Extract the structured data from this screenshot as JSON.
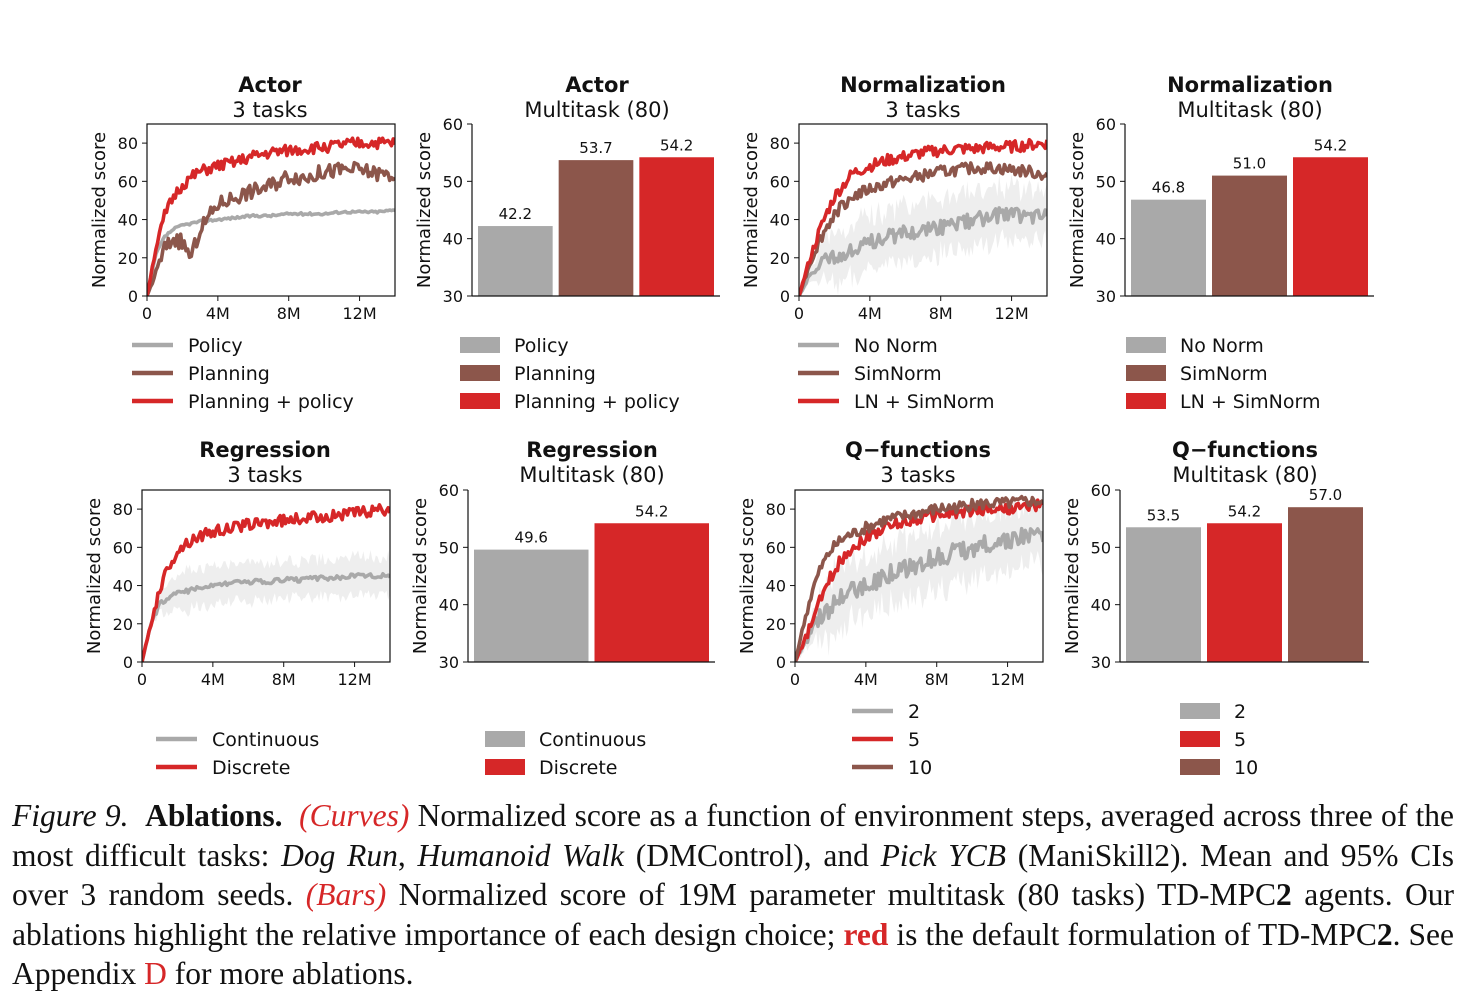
{
  "colors": {
    "gray": "#a9a9a9",
    "brown": "#8c564b",
    "red": "#d62728",
    "band": "#ececec",
    "caption_accent": "#d62728"
  },
  "chart_data": [
    {
      "type": "line",
      "id": "actor-curve",
      "title": "Actor",
      "subtitle": "3 tasks",
      "ylabel": "Normalized score",
      "xlabel": "",
      "xlim": [
        0,
        14
      ],
      "ylim": [
        0,
        90
      ],
      "xticks": [
        "0",
        "4M",
        "8M",
        "12M"
      ],
      "yticks": [
        "0",
        "20",
        "40",
        "60",
        "80"
      ],
      "x": [
        0,
        0.5,
        1,
        1.5,
        2,
        2.5,
        3,
        4,
        5,
        6,
        7,
        8,
        9,
        10,
        11,
        12,
        13,
        14
      ],
      "series": [
        {
          "name": "Policy",
          "color": "gray",
          "band": 0,
          "noise": 0.6,
          "values": [
            0,
            22,
            31,
            35,
            37,
            38,
            39,
            40,
            41,
            42,
            42,
            43,
            43,
            43,
            44,
            44,
            44,
            45
          ]
        },
        {
          "name": "Planning",
          "color": "brown",
          "band": 0,
          "noise": 4,
          "values": [
            0,
            12,
            25,
            30,
            28,
            20,
            35,
            48,
            52,
            55,
            58,
            63,
            62,
            65,
            66,
            66,
            64,
            63
          ]
        },
        {
          "name": "Planning + policy",
          "color": "red",
          "band": 0,
          "noise": 3,
          "values": [
            0,
            25,
            42,
            52,
            58,
            62,
            65,
            68,
            70,
            73,
            75,
            76,
            77,
            78,
            79,
            80,
            80,
            80
          ]
        }
      ],
      "legend": "below"
    },
    {
      "type": "bar",
      "id": "actor-bar",
      "title": "Actor",
      "subtitle": "Multitask (80)",
      "ylabel": "Normalized score",
      "ylim": [
        30,
        60
      ],
      "yticks": [
        "30",
        "40",
        "50",
        "60"
      ],
      "categories": [
        "Policy",
        "Planning",
        "Planning + policy"
      ],
      "values": [
        42.2,
        53.7,
        54.2
      ],
      "value_labels": [
        "42.2",
        "53.7",
        "54.2"
      ],
      "colors": [
        "gray",
        "brown",
        "red"
      ]
    },
    {
      "type": "line",
      "id": "norm-curve",
      "title": "Normalization",
      "subtitle": "3 tasks",
      "ylabel": "Normalized score",
      "xlabel": "",
      "xlim": [
        0,
        14
      ],
      "ylim": [
        0,
        90
      ],
      "xticks": [
        "0",
        "4M",
        "8M",
        "12M"
      ],
      "yticks": [
        "0",
        "20",
        "40",
        "60",
        "80"
      ],
      "x": [
        0,
        0.5,
        1,
        1.5,
        2,
        2.5,
        3,
        4,
        5,
        6,
        7,
        8,
        9,
        10,
        11,
        12,
        13,
        14
      ],
      "series": [
        {
          "name": "No Norm",
          "color": "gray",
          "band": 14,
          "noise": 4,
          "values": [
            0,
            8,
            15,
            18,
            20,
            22,
            24,
            28,
            31,
            33,
            35,
            36,
            38,
            40,
            42,
            43,
            42,
            43
          ]
        },
        {
          "name": "SimNorm",
          "color": "brown",
          "band": 0,
          "noise": 3,
          "values": [
            0,
            14,
            26,
            35,
            43,
            48,
            52,
            56,
            59,
            61,
            63,
            65,
            66,
            67,
            67,
            66,
            65,
            63
          ]
        },
        {
          "name": "LN + SimNorm",
          "color": "red",
          "band": 0,
          "noise": 3,
          "values": [
            0,
            16,
            30,
            42,
            52,
            58,
            64,
            68,
            71,
            73,
            75,
            76,
            77,
            77,
            78,
            78,
            79,
            80
          ]
        }
      ],
      "legend": "below"
    },
    {
      "type": "bar",
      "id": "norm-bar",
      "title": "Normalization",
      "subtitle": "Multitask (80)",
      "ylabel": "Normalized score",
      "ylim": [
        30,
        60
      ],
      "yticks": [
        "30",
        "40",
        "50",
        "60"
      ],
      "categories": [
        "No Norm",
        "SimNorm",
        "LN + SimNorm"
      ],
      "values": [
        46.8,
        51.0,
        54.2
      ],
      "value_labels": [
        "46.8",
        "51.0",
        "54.2"
      ],
      "colors": [
        "gray",
        "brown",
        "red"
      ]
    },
    {
      "type": "line",
      "id": "reg-curve",
      "title": "Regression",
      "subtitle": "3 tasks",
      "ylabel": "Normalized score",
      "xlabel": "",
      "xlim": [
        0,
        14
      ],
      "ylim": [
        0,
        90
      ],
      "xticks": [
        "0",
        "4M",
        "8M",
        "12M"
      ],
      "yticks": [
        "0",
        "20",
        "40",
        "60",
        "80"
      ],
      "x": [
        0,
        0.5,
        1,
        1.5,
        2,
        2.5,
        3,
        4,
        5,
        6,
        7,
        8,
        9,
        10,
        11,
        12,
        13,
        14
      ],
      "series": [
        {
          "name": "Continuous",
          "color": "gray",
          "band": 10,
          "noise": 1.2,
          "values": [
            0,
            20,
            30,
            34,
            36,
            37,
            38,
            40,
            41,
            42,
            42,
            43,
            43,
            44,
            44,
            45,
            45,
            45
          ]
        },
        {
          "name": "Discrete",
          "color": "red",
          "band": 0,
          "noise": 3,
          "values": [
            0,
            20,
            38,
            50,
            58,
            62,
            65,
            68,
            70,
            72,
            73,
            74,
            75,
            76,
            77,
            78,
            79,
            80
          ]
        }
      ],
      "legend": "below"
    },
    {
      "type": "bar",
      "id": "reg-bar",
      "title": "Regression",
      "subtitle": "Multitask (80)",
      "ylabel": "Normalized score",
      "ylim": [
        30,
        60
      ],
      "yticks": [
        "30",
        "40",
        "50",
        "60"
      ],
      "categories": [
        "Continuous",
        "Discrete"
      ],
      "values": [
        49.6,
        54.2
      ],
      "value_labels": [
        "49.6",
        "54.2"
      ],
      "colors": [
        "gray",
        "red"
      ]
    },
    {
      "type": "line",
      "id": "q-curve",
      "title": "Q−functions",
      "subtitle": "3 tasks",
      "ylabel": "Normalized score",
      "xlabel": "",
      "xlim": [
        0,
        14
      ],
      "ylim": [
        0,
        90
      ],
      "xticks": [
        "0",
        "4M",
        "8M",
        "12M"
      ],
      "yticks": [
        "0",
        "20",
        "40",
        "60",
        "80"
      ],
      "x": [
        0,
        0.5,
        1,
        1.5,
        2,
        2.5,
        3,
        4,
        5,
        6,
        7,
        8,
        9,
        10,
        11,
        12,
        13,
        14
      ],
      "series": [
        {
          "name": "2",
          "color": "gray",
          "band": 16,
          "noise": 5,
          "values": [
            0,
            10,
            18,
            24,
            28,
            32,
            36,
            40,
            45,
            48,
            52,
            55,
            57,
            60,
            62,
            64,
            65,
            67
          ]
        },
        {
          "name": "5",
          "color": "red",
          "band": 0,
          "noise": 3,
          "values": [
            0,
            10,
            22,
            34,
            44,
            52,
            58,
            65,
            70,
            73,
            75,
            77,
            78,
            79,
            80,
            80,
            81,
            82
          ]
        },
        {
          "name": "10",
          "color": "brown",
          "band": 0,
          "noise": 3,
          "values": [
            0,
            20,
            38,
            50,
            58,
            63,
            66,
            70,
            74,
            76,
            78,
            80,
            81,
            82,
            83,
            83,
            84,
            84
          ]
        }
      ],
      "legend": "below"
    },
    {
      "type": "bar",
      "id": "q-bar",
      "title": "Q−functions",
      "subtitle": "Multitask (80)",
      "ylabel": "Normalized score",
      "ylim": [
        30,
        60
      ],
      "yticks": [
        "30",
        "40",
        "50",
        "60"
      ],
      "categories": [
        "2",
        "5",
        "10"
      ],
      "values": [
        53.5,
        54.2,
        57.0
      ],
      "value_labels": [
        "53.5",
        "54.2",
        "57.0"
      ],
      "colors": [
        "gray",
        "red",
        "brown"
      ]
    }
  ],
  "caption": {
    "figure_label": "Figure 9.",
    "heading": "Ablations.",
    "curves_tag": "(Curves)",
    "part1": " Normalized score as a function of environment steps, averaged across three of the most difficult tasks: ",
    "task1": "Dog Run",
    "sep1": ", ",
    "task2": "Humanoid Walk",
    "part2": " (DMControl), and ",
    "task3": "Pick YCB",
    "part3": " (ManiSkill2). Mean and 95% CIs over 3 random seeds. ",
    "bars_tag": "(Bars)",
    "part4": " Normalized score of 19M parameter multitask (80 tasks) TD-MPC",
    "two_a": "2",
    "part5": " agents.  Our ablations highlight the relative importance of each design choice; ",
    "red_word": "red",
    "part6": " is the default formulation of TD-MPC",
    "two_b": "2",
    "part7": ". See Appendix ",
    "appendix": "D",
    "part8": " for more ablations."
  }
}
